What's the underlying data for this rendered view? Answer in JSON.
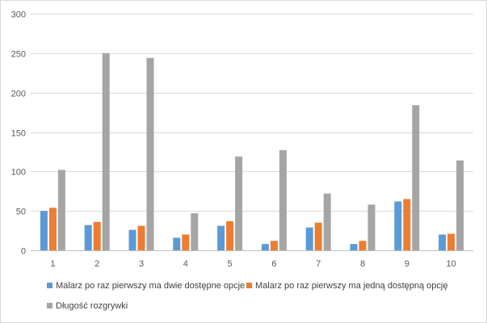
{
  "chart_data": {
    "type": "bar",
    "title": "",
    "xlabel": "",
    "ylabel": "",
    "categories": [
      "1",
      "2",
      "3",
      "4",
      "5",
      "6",
      "7",
      "8",
      "9",
      "10"
    ],
    "series": [
      {
        "name": "Malarz po raz pierwszy ma dwie dostępne opcje",
        "color": "#5b9bd5",
        "values": [
          50,
          32,
          26,
          16,
          31,
          8,
          29,
          8,
          62,
          20
        ]
      },
      {
        "name": "Malarz po raz pierwszy ma jedną dostępną opcję",
        "color": "#ed7d31",
        "values": [
          54,
          36,
          31,
          20,
          37,
          12,
          35,
          12,
          65,
          21
        ]
      },
      {
        "name": "Długość rozgrywki",
        "color": "#a5a5a5",
        "values": [
          102,
          250,
          244,
          47,
          119,
          127,
          72,
          58,
          184,
          114
        ]
      }
    ],
    "ylim": [
      0,
      300
    ],
    "yticks": [
      0,
      50,
      100,
      150,
      200,
      250,
      300
    ],
    "grid": true,
    "legend_position": "bottom-left"
  }
}
